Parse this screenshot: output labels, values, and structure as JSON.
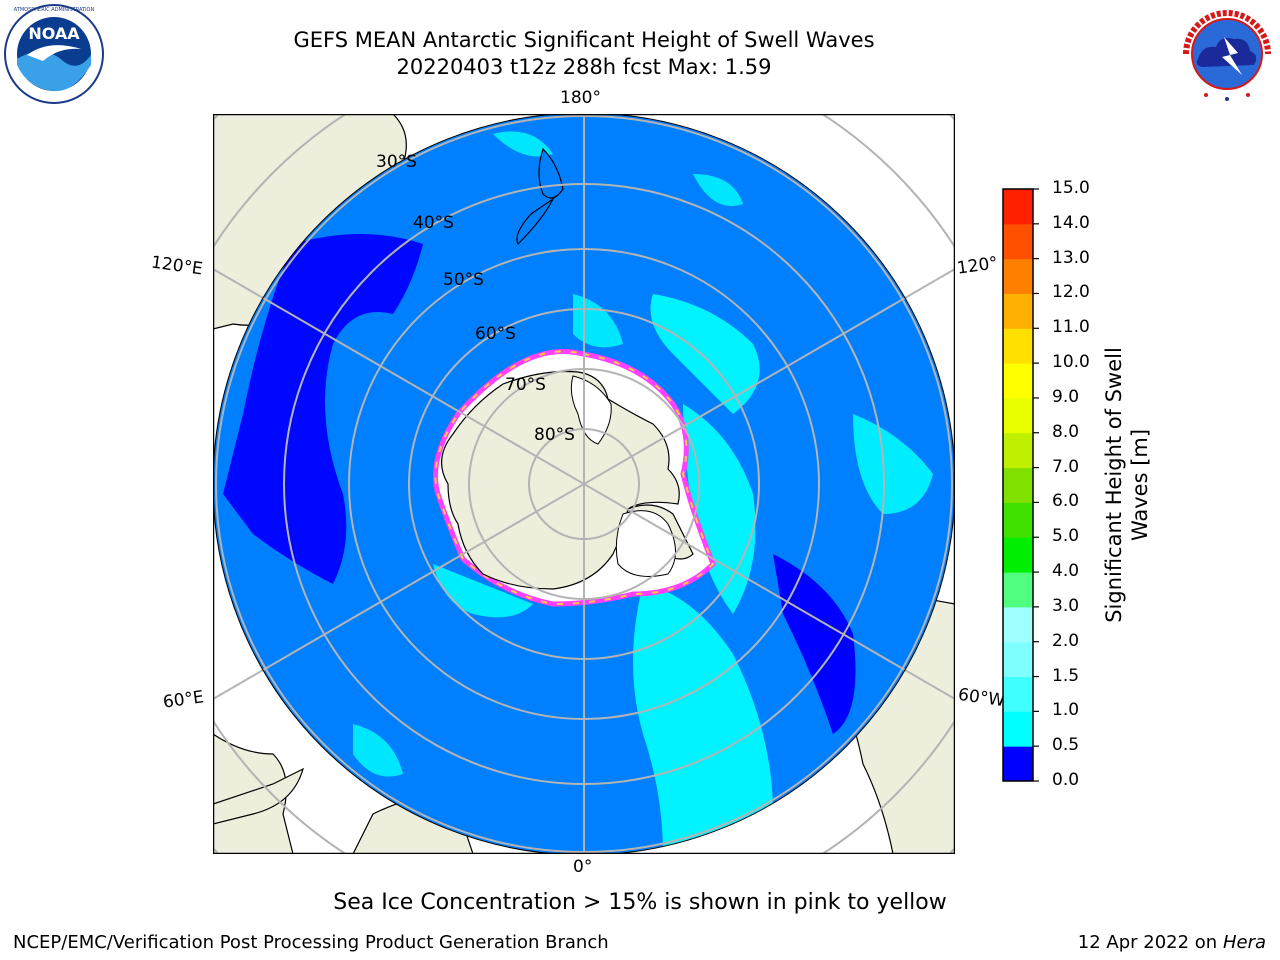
{
  "title": {
    "line1": "GEFS MEAN Antarctic Significant Height of Swell Waves",
    "line2": "20220403 t12z 288h fcst   Max: 1.59"
  },
  "logos": {
    "left": {
      "icon": "noaa-logo",
      "text": "NOAA",
      "ring_text": "NATIONAL OCEANIC AND ATMOSPHERIC ADMINISTRATION · U.S. DEPARTMENT OF COMMERCE"
    },
    "right": {
      "icon": "nws-logo",
      "ring_text": "NATIONAL WEATHER SERVICE"
    }
  },
  "map": {
    "projection": "south-polar-stereographic",
    "longitude_labels": {
      "top": "180°",
      "bottom": "0°",
      "upper_left": "120°E",
      "lower_left": "60°E",
      "upper_right": "120°",
      "lower_right": "60°W"
    },
    "latitude_labels": [
      "30°S",
      "40°S",
      "50°S",
      "60°S",
      "70°S",
      "80°S"
    ],
    "colors": {
      "ocean_main": "#0080ff",
      "land": "#eeeedc",
      "ice": "#ffffff",
      "swell_low": "#0000ff",
      "swell_mid": "#00ffff",
      "grid": "#b4b4b4"
    }
  },
  "colorbar": {
    "label": "Significant Height of Swell Waves [m]",
    "label_line1": "Significant Height of Swell",
    "label_line2": "Waves [m]",
    "ticks": [
      "0.0",
      "0.5",
      "1.0",
      "1.5",
      "2.0",
      "3.0",
      "4.0",
      "5.0",
      "6.0",
      "7.0",
      "8.0",
      "9.0",
      "10.0",
      "11.0",
      "12.0",
      "13.0",
      "14.0",
      "15.0"
    ],
    "colors": [
      "#0000ff",
      "#0080ff",
      "#00ffff",
      "#40ffff",
      "#80ffff",
      "#a0ffff",
      "#50ff80",
      "#00ee00",
      "#40e000",
      "#80e000",
      "#c0f000",
      "#e8ff00",
      "#ffff00",
      "#ffe000",
      "#ffb000",
      "#ff8000",
      "#ff5000",
      "#ff2000",
      "#ff0000"
    ]
  },
  "note": "Sea Ice Concentration > 15% is shown in pink to yellow",
  "footer": {
    "left": "NCEP/EMC/Verification Post Processing Product Generation Branch",
    "right_prefix": "12 Apr 2022 on ",
    "right_italic": "Hera"
  }
}
